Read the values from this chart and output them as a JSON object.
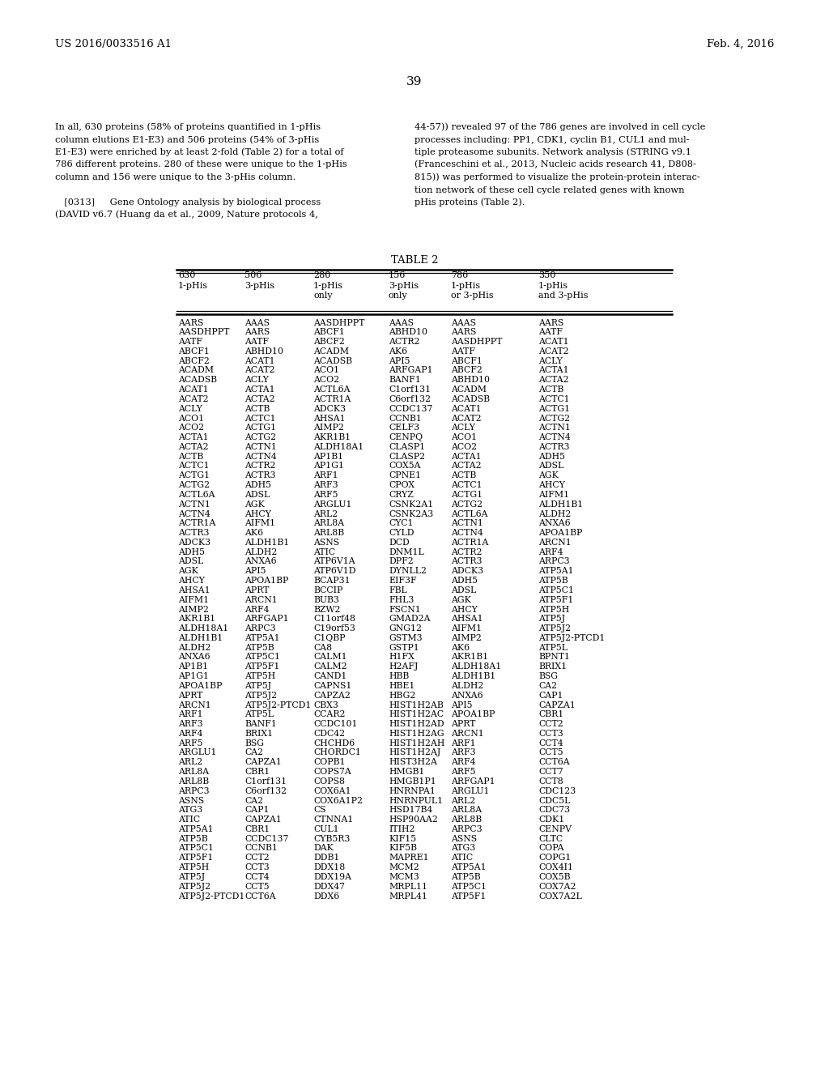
{
  "bg_color": "#ffffff",
  "header_left": "US 2016/0033516 A1",
  "header_right": "Feb. 4, 2016",
  "page_number": "39",
  "para_left_lines": [
    "In all, 630 proteins (58% of proteins quantified in 1-pHis",
    "column elutions E1-E3) and 506 proteins (54% of 3-pHis",
    "E1-E3) were enriched by at least 2-fold (Table 2) for a total of",
    "786 different proteins. 280 of these were unique to the 1-pHis",
    "column and 156 were unique to the 3-pHis column.",
    " ",
    " [0313]   Gene Ontology analysis by biological process",
    "(DAVID v6.7 (Huang da et al., 2009, Nature protocols 4,"
  ],
  "para_right_lines": [
    "44-57)) revealed 97 of the 786 genes are involved in cell cycle",
    "processes including: PP1, CDK1, cyclin B1, CUL1 and mul-",
    "tiple proteasome subunits. Network analysis (STRING v9.1",
    "(Franceschini et al., 2013, Nucleic acids research 41, D808-",
    "815)) was performed to visualize the protein-protein interac-",
    "tion network of these cell cycle related genes with known",
    "pHis proteins (Table 2)."
  ],
  "table_title": "TABLE 2",
  "col_headers": [
    [
      "630",
      "1-pHis"
    ],
    [
      "506",
      "3-pHis"
    ],
    [
      "280",
      "1-pHis",
      "only"
    ],
    [
      "156",
      "3-pHis",
      "only"
    ],
    [
      "786",
      "1-pHis",
      "or 3-pHis"
    ],
    [
      "350",
      "1-pHis",
      "and 3-pHis"
    ]
  ],
  "table_data": [
    [
      "AARS",
      "AAAS",
      "AASDHPPT",
      "AAAS",
      "AAAS",
      "AARS"
    ],
    [
      "AASDHPPT",
      "AARS",
      "ABCF1",
      "ABHD10",
      "AARS",
      "AATF"
    ],
    [
      "AATF",
      "AATF",
      "ABCF2",
      "ACTR2",
      "AASDHPPT",
      "ACAT1"
    ],
    [
      "ABCF1",
      "ABHD10",
      "ACADM",
      "AK6",
      "AATF",
      "ACAT2"
    ],
    [
      "ABCF2",
      "ACAT1",
      "ACADSB",
      "API5",
      "ABCF1",
      "ACLY"
    ],
    [
      "ACADM",
      "ACAT2",
      "ACO1",
      "ARFGAP1",
      "ABCF2",
      "ACTA1"
    ],
    [
      "ACADSB",
      "ACLY",
      "ACO2",
      "BANF1",
      "ABHD10",
      "ACTA2"
    ],
    [
      "ACAT1",
      "ACTA1",
      "ACTL6A",
      "C1orf131",
      "ACADM",
      "ACTB"
    ],
    [
      "ACAT2",
      "ACTA2",
      "ACTR1A",
      "C6orf132",
      "ACADSB",
      "ACTC1"
    ],
    [
      "ACLY",
      "ACTB",
      "ADCK3",
      "CCDC137",
      "ACAT1",
      "ACTG1"
    ],
    [
      "ACO1",
      "ACTC1",
      "AHSA1",
      "CCNB1",
      "ACAT2",
      "ACTG2"
    ],
    [
      "ACO2",
      "ACTG1",
      "AIMP2",
      "CELF3",
      "ACLY",
      "ACTN1"
    ],
    [
      "ACTA1",
      "ACTG2",
      "AKR1B1",
      "CENPQ",
      "ACO1",
      "ACTN4"
    ],
    [
      "ACTA2",
      "ACTN1",
      "ALDH18A1",
      "CLASP1",
      "ACO2",
      "ACTR3"
    ],
    [
      "ACTB",
      "ACTN4",
      "AP1B1",
      "CLASP2",
      "ACTA1",
      "ADH5"
    ],
    [
      "ACTC1",
      "ACTR2",
      "AP1G1",
      "COX5A",
      "ACTA2",
      "ADSL"
    ],
    [
      "ACTG1",
      "ACTR3",
      "ARF1",
      "CPNE1",
      "ACTB",
      "AGK"
    ],
    [
      "ACTG2",
      "ADH5",
      "ARF3",
      "CPOX",
      "ACTC1",
      "AHCY"
    ],
    [
      "ACTL6A",
      "ADSL",
      "ARF5",
      "CRYZ",
      "ACTG1",
      "AIFM1"
    ],
    [
      "ACTN1",
      "AGK",
      "ARGLU1",
      "CSNK2A1",
      "ACTG2",
      "ALDH1B1"
    ],
    [
      "ACTN4",
      "AHCY",
      "ARL2",
      "CSNK2A3",
      "ACTL6A",
      "ALDH2"
    ],
    [
      "ACTR1A",
      "AIFM1",
      "ARL8A",
      "CYC1",
      "ACTN1",
      "ANXA6"
    ],
    [
      "ACTR3",
      "AK6",
      "ARL8B",
      "CYLD",
      "ACTN4",
      "APOA1BP"
    ],
    [
      "ADCK3",
      "ALDH1B1",
      "ASNS",
      "DCD",
      "ACTR1A",
      "ARCN1"
    ],
    [
      "ADH5",
      "ALDH2",
      "ATIC",
      "DNM1L",
      "ACTR2",
      "ARF4"
    ],
    [
      "ADSL",
      "ANXA6",
      "ATP6V1A",
      "DPF2",
      "ACTR3",
      "ARPC3"
    ],
    [
      "AGK",
      "API5",
      "ATP6V1D",
      "DYNLL2",
      "ADCK3",
      "ATP5A1"
    ],
    [
      "AHCY",
      "APOA1BP",
      "BCAP31",
      "EIF3F",
      "ADH5",
      "ATP5B"
    ],
    [
      "AHSA1",
      "APRT",
      "BCCIP",
      "FBL",
      "ADSL",
      "ATP5C1"
    ],
    [
      "AIFM1",
      "ARCN1",
      "BUB3",
      "FHL3",
      "AGK",
      "ATP5F1"
    ],
    [
      "AIMP2",
      "ARF4",
      "BZW2",
      "FSCN1",
      "AHCY",
      "ATP5H"
    ],
    [
      "AKR1B1",
      "ARFGAP1",
      "C11orf48",
      "GMAD2A",
      "AHSA1",
      "ATP5J"
    ],
    [
      "ALDH18A1",
      "ARPC3",
      "C19orf53",
      "GNG12",
      "AIFM1",
      "ATP5J2"
    ],
    [
      "ALDH1B1",
      "ATP5A1",
      "C1QBP",
      "GSTM3",
      "AIMP2",
      "ATP5J2-PTCD1"
    ],
    [
      "ALDH2",
      "ATP5B",
      "CA8",
      "GSTP1",
      "AK6",
      "ATP5L"
    ],
    [
      "ANXA6",
      "ATP5C1",
      "CALM1",
      "H1FX",
      "AKR1B1",
      "BPNT1"
    ],
    [
      "AP1B1",
      "ATP5F1",
      "CALM2",
      "H2AFJ",
      "ALDH18A1",
      "BRIX1"
    ],
    [
      "AP1G1",
      "ATP5H",
      "CAND1",
      "HBB",
      "ALDH1B1",
      "BSG"
    ],
    [
      "APOA1BP",
      "ATP5J",
      "CAPNS1",
      "HBE1",
      "ALDH2",
      "CA2"
    ],
    [
      "APRT",
      "ATP5J2",
      "CAPZA2",
      "HBG2",
      "ANXA6",
      "CAP1"
    ],
    [
      "ARCN1",
      "ATP5J2-PTCD1",
      "CBX3",
      "HIST1H2AB",
      "API5",
      "CAPZA1"
    ],
    [
      "ARF1",
      "ATP5L",
      "CCAR2",
      "HIST1H2AC",
      "APOA1BP",
      "CBR1"
    ],
    [
      "ARF3",
      "BANF1",
      "CCDC101",
      "HIST1H2AD",
      "APRT",
      "CCT2"
    ],
    [
      "ARF4",
      "BRIX1",
      "CDC42",
      "HIST1H2AG",
      "ARCN1",
      "CCT3"
    ],
    [
      "ARF5",
      "BSG",
      "CHCHD6",
      "HIST1H2AH",
      "ARF1",
      "CCT4"
    ],
    [
      "ARGLU1",
      "CA2",
      "CHORDC1",
      "HIST1H2AJ",
      "ARF3",
      "CCT5"
    ],
    [
      "ARL2",
      "CAPZA1",
      "COPB1",
      "HIST3H2A",
      "ARF4",
      "CCT6A"
    ],
    [
      "ARL8A",
      "CBR1",
      "COPS7A",
      "HMGB1",
      "ARF5",
      "CCT7"
    ],
    [
      "ARL8B",
      "C1orf131",
      "COPS8",
      "HMGB1P1",
      "ARFGAP1",
      "CCT8"
    ],
    [
      "ARPC3",
      "C6orf132",
      "COX6A1",
      "HNRNPA1",
      "ARGLU1",
      "CDC123"
    ],
    [
      "ASNS",
      "CA2",
      "COX6A1P2",
      "HNRNPUL1",
      "ARL2",
      "CDC5L"
    ],
    [
      "ATG3",
      "CAP1",
      "CS",
      "HSD17B4",
      "ARL8A",
      "CDC73"
    ],
    [
      "ATIC",
      "CAPZA1",
      "CTNNA1",
      "HSP90AA2",
      "ARL8B",
      "CDK1"
    ],
    [
      "ATP5A1",
      "CBR1",
      "CUL1",
      "ITIH2",
      "ARPC3",
      "CENPV"
    ],
    [
      "ATP5B",
      "CCDC137",
      "CYB5R3",
      "KIF15",
      "ASNS",
      "CLTC"
    ],
    [
      "ATP5C1",
      "CCNB1",
      "DAK",
      "KIF5B",
      "ATG3",
      "COPA"
    ],
    [
      "ATP5F1",
      "CCT2",
      "DDB1",
      "MAPRE1",
      "ATIC",
      "COPG1"
    ],
    [
      "ATP5H",
      "CCT3",
      "DDX18",
      "MCM2",
      "ATP5A1",
      "COX4I1"
    ],
    [
      "ATP5J",
      "CCT4",
      "DDX19A",
      "MCM3",
      "ATP5B",
      "COX5B"
    ],
    [
      "ATP5J2",
      "CCT5",
      "DDX47",
      "MRPL11",
      "ATP5C1",
      "COX7A2"
    ],
    [
      "ATP5J2-PTCD1",
      "CCT6A",
      "DDX6",
      "MRPL41",
      "ATP5F1",
      "COX7A2L"
    ]
  ]
}
